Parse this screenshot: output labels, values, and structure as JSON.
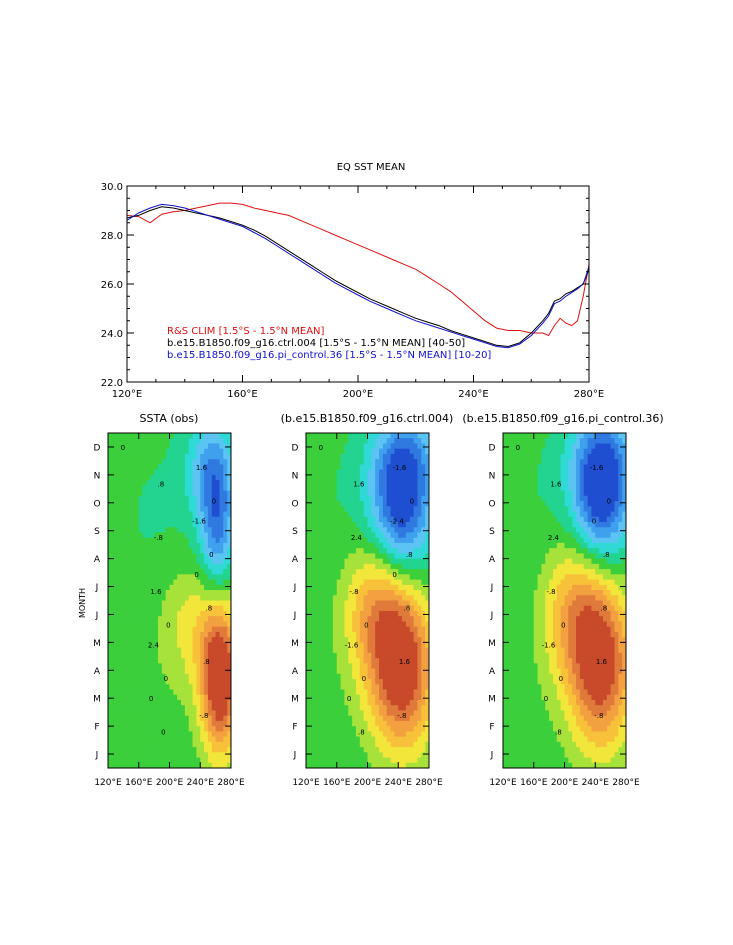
{
  "colors": {
    "obs": "#e01010",
    "ctrl": "#000000",
    "pi": "#1010d0",
    "contour_levels": [
      "#1f4fd0",
      "#2f79e0",
      "#3fa0ee",
      "#5cc4f2",
      "#2ed9d6",
      "#22d48f",
      "#3ccf3c",
      "#a6e23a",
      "#f2e63a",
      "#f7c23a",
      "#f2a040",
      "#e07a3a",
      "#c84a2a"
    ]
  },
  "chart_data": [
    {
      "type": "line",
      "title": "EQ SST MEAN",
      "xlabel": "",
      "ylabel": "",
      "xlim": [
        120,
        280
      ],
      "ylim": [
        22,
        30
      ],
      "xticks": [
        {
          "v": 120,
          "label": "120°E"
        },
        {
          "v": 160,
          "label": "160°E"
        },
        {
          "v": 200,
          "label": "200°E"
        },
        {
          "v": 240,
          "label": "240°E"
        },
        {
          "v": 280,
          "label": "280°E"
        }
      ],
      "yticks": [
        {
          "v": 22,
          "label": "22.0"
        },
        {
          "v": 24,
          "label": "24.0"
        },
        {
          "v": 26,
          "label": "26.0"
        },
        {
          "v": 28,
          "label": "28.0"
        },
        {
          "v": 30,
          "label": "30.0"
        }
      ],
      "legend": [
        {
          "label": "R&S CLIM [1.5°S - 1.5°N MEAN]",
          "color": "#e01010"
        },
        {
          "label": "b.e15.B1850.f09_g16.ctrl.004 [1.5°S - 1.5°N MEAN] [40-50]",
          "color": "#000000"
        },
        {
          "label": "b.e15.B1850.f09_g16.pi_control.36 [1.5°S - 1.5°N MEAN] [10-20]",
          "color": "#1010d0"
        }
      ],
      "series": [
        {
          "name": "R&S CLIM",
          "color": "#e01010",
          "x": [
            120,
            124,
            128,
            132,
            136,
            140,
            144,
            148,
            152,
            156,
            160,
            164,
            168,
            172,
            176,
            180,
            184,
            188,
            192,
            196,
            200,
            204,
            208,
            212,
            216,
            220,
            224,
            228,
            232,
            236,
            240,
            244,
            248,
            252,
            256,
            260,
            264,
            266,
            268,
            270,
            272,
            274,
            276,
            278,
            280
          ],
          "y": [
            28.8,
            28.75,
            28.5,
            28.85,
            28.95,
            29.0,
            29.1,
            29.2,
            29.3,
            29.3,
            29.25,
            29.1,
            29.0,
            28.9,
            28.8,
            28.6,
            28.4,
            28.2,
            28.0,
            27.8,
            27.6,
            27.4,
            27.2,
            27.0,
            26.8,
            26.6,
            26.3,
            26.0,
            25.7,
            25.3,
            24.9,
            24.5,
            24.2,
            24.1,
            24.1,
            24.0,
            24.0,
            23.9,
            24.3,
            24.6,
            24.4,
            24.3,
            24.5,
            25.5,
            26.8
          ]
        },
        {
          "name": "b.e15.B1850.f09_g16.ctrl.004",
          "color": "#000000",
          "x": [
            120,
            124,
            128,
            132,
            136,
            140,
            144,
            148,
            152,
            156,
            160,
            164,
            168,
            172,
            176,
            180,
            184,
            188,
            192,
            196,
            200,
            204,
            208,
            212,
            216,
            220,
            224,
            228,
            232,
            236,
            240,
            244,
            248,
            252,
            256,
            260,
            264,
            266,
            268,
            270,
            272,
            274,
            276,
            278,
            280
          ],
          "y": [
            28.7,
            28.8,
            29.0,
            29.15,
            29.1,
            29.0,
            28.9,
            28.8,
            28.7,
            28.55,
            28.4,
            28.2,
            27.95,
            27.65,
            27.35,
            27.05,
            26.75,
            26.45,
            26.15,
            25.9,
            25.65,
            25.4,
            25.2,
            25.0,
            24.8,
            24.6,
            24.45,
            24.3,
            24.1,
            23.95,
            23.8,
            23.65,
            23.5,
            23.45,
            23.6,
            24.0,
            24.5,
            24.8,
            25.3,
            25.4,
            25.6,
            25.7,
            25.85,
            26.0,
            26.6
          ]
        },
        {
          "name": "b.e15.B1850.f09_g16.pi_control.36",
          "color": "#1010d0",
          "x": [
            120,
            124,
            128,
            132,
            136,
            140,
            144,
            148,
            152,
            156,
            160,
            164,
            168,
            172,
            176,
            180,
            184,
            188,
            192,
            196,
            200,
            204,
            208,
            212,
            216,
            220,
            224,
            228,
            232,
            236,
            240,
            244,
            248,
            252,
            256,
            260,
            264,
            266,
            268,
            270,
            272,
            274,
            276,
            278,
            280
          ],
          "y": [
            28.6,
            28.9,
            29.1,
            29.25,
            29.2,
            29.1,
            28.95,
            28.8,
            28.65,
            28.5,
            28.35,
            28.1,
            27.85,
            27.55,
            27.25,
            26.95,
            26.65,
            26.35,
            26.05,
            25.8,
            25.55,
            25.3,
            25.1,
            24.9,
            24.7,
            24.5,
            24.35,
            24.2,
            24.05,
            23.9,
            23.75,
            23.6,
            23.45,
            23.4,
            23.55,
            23.9,
            24.4,
            24.7,
            25.2,
            25.3,
            25.5,
            25.65,
            25.8,
            26.0,
            26.7
          ]
        }
      ]
    },
    {
      "type": "heatmap",
      "title": "SSTA (obs)",
      "ylabel": "MONTH",
      "xlim": [
        120,
        280
      ],
      "xticks": [
        {
          "v": 120,
          "label": "120°E"
        },
        {
          "v": 160,
          "label": "160°E"
        },
        {
          "v": 200,
          "label": "200°E"
        },
        {
          "v": 240,
          "label": "240°E"
        },
        {
          "v": 280,
          "label": "280°E"
        }
      ],
      "yticks": [
        "J",
        "F",
        "M",
        "A",
        "M",
        "J",
        "J",
        "A",
        "S",
        "O",
        "N",
        "D"
      ],
      "contour_labels": [
        "0",
        "0",
        "0",
        "0",
        "0",
        "0",
        ".8",
        ".8",
        ".8",
        "-.8",
        "-.8",
        "1.6",
        "1.6",
        "2.4",
        "-1.6",
        "0",
        "0"
      ],
      "features": [
        {
          "sign": "warm",
          "lon": 266,
          "month": 3.2,
          "amp": 3.4,
          "sx": 18,
          "sy": 1.9
        },
        {
          "sign": "warm",
          "lon": 228,
          "month": 5.2,
          "amp": 0.9,
          "sx": 28,
          "sy": 1.6
        },
        {
          "sign": "cold",
          "lon": 262,
          "month": 8.8,
          "amp": 2.1,
          "sx": 16,
          "sy": 1.8
        },
        {
          "sign": "cold",
          "lon": 250,
          "month": 10.8,
          "amp": 1.1,
          "sx": 22,
          "sy": 1.2
        }
      ]
    },
    {
      "type": "heatmap",
      "title": "(b.e15.B1850.f09_g16.ctrl.004)",
      "xlim": [
        120,
        280
      ],
      "xticks": [
        {
          "v": 120,
          "label": "120°E"
        },
        {
          "v": 160,
          "label": "160°E"
        },
        {
          "v": 200,
          "label": "200°E"
        },
        {
          "v": 240,
          "label": "240°E"
        },
        {
          "v": 280,
          "label": "280°E"
        }
      ],
      "yticks": [
        "J",
        "F",
        "M",
        "A",
        "M",
        "J",
        "J",
        "A",
        "S",
        "O",
        "N",
        "D"
      ],
      "contour_labels": [
        "0",
        "0",
        "0",
        "0",
        ".8",
        ".8",
        ".8",
        "1.6",
        "1.6",
        "2.4",
        "-.8",
        "-.8",
        "-1.6",
        "-1.6",
        "-2.4",
        "0",
        "0"
      ],
      "features": [
        {
          "sign": "warm",
          "lon": 246,
          "month": 3.5,
          "amp": 3.0,
          "sx": 30,
          "sy": 2.1
        },
        {
          "sign": "warm",
          "lon": 210,
          "month": 5.8,
          "amp": 1.6,
          "sx": 30,
          "sy": 1.8
        },
        {
          "sign": "cold",
          "lon": 244,
          "month": 9.3,
          "amp": 2.7,
          "sx": 28,
          "sy": 1.7
        },
        {
          "sign": "cold",
          "lon": 250,
          "month": 11.2,
          "amp": 1.2,
          "sx": 30,
          "sy": 1.1
        }
      ]
    },
    {
      "type": "heatmap",
      "title": "(b.e15.B1850.f09_g16.pi_control.36)",
      "xlim": [
        120,
        280
      ],
      "xticks": [
        {
          "v": 120,
          "label": "120°E"
        },
        {
          "v": 160,
          "label": "160°E"
        },
        {
          "v": 200,
          "label": "200°E"
        },
        {
          "v": 240,
          "label": "240°E"
        },
        {
          "v": 280,
          "label": "280°E"
        }
      ],
      "yticks": [
        "J",
        "F",
        "M",
        "A",
        "M",
        "J",
        "J",
        "A",
        "S",
        "O",
        "N",
        "D"
      ],
      "contour_labels": [
        "0",
        "0",
        "0",
        "0",
        ".8",
        ".8",
        ".8",
        "1.6",
        "1.6",
        "2.4",
        "-.8",
        "-.8",
        "-1.6",
        "-1.6",
        "0",
        "0"
      ],
      "features": [
        {
          "sign": "warm",
          "lon": 248,
          "month": 3.6,
          "amp": 2.9,
          "sx": 30,
          "sy": 2.1
        },
        {
          "sign": "warm",
          "lon": 212,
          "month": 5.8,
          "amp": 1.5,
          "sx": 30,
          "sy": 1.8
        },
        {
          "sign": "cold",
          "lon": 248,
          "month": 9.7,
          "amp": 2.8,
          "sx": 26,
          "sy": 1.6
        },
        {
          "sign": "cold",
          "lon": 250,
          "month": 11.3,
          "amp": 1.1,
          "sx": 30,
          "sy": 1.1
        }
      ]
    }
  ]
}
